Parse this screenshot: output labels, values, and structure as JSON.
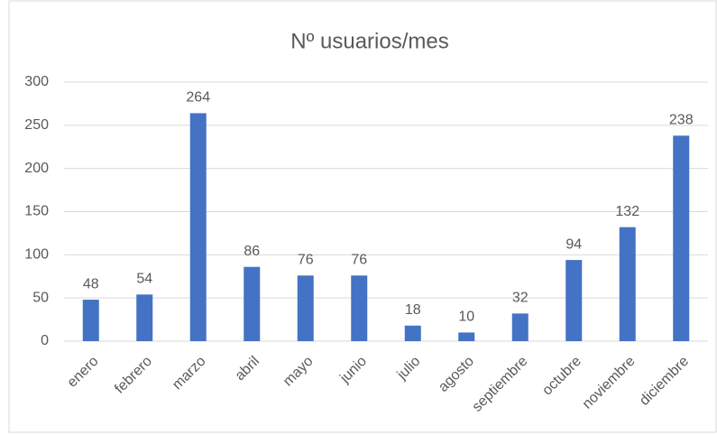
{
  "chart_data": {
    "type": "bar",
    "title": "Nº usuarios/mes",
    "categories": [
      "enero",
      "febrero",
      "marzo",
      "abril",
      "mayo",
      "junio",
      "julio",
      "agosto",
      "septiembre",
      "octubre",
      "noviembre",
      "diciembre"
    ],
    "values": [
      48,
      54,
      264,
      86,
      76,
      76,
      18,
      10,
      32,
      94,
      132,
      238
    ],
    "color": "#4472c4",
    "ylim": [
      0,
      300
    ],
    "yticks": [
      0,
      50,
      100,
      150,
      200,
      250,
      300
    ],
    "grid": true
  }
}
